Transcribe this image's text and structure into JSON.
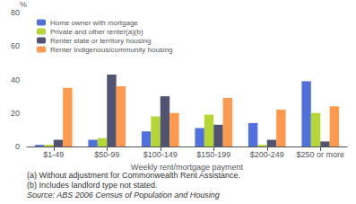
{
  "chart_data": {
    "type": "bar",
    "categories": [
      "$1-49",
      "$50-99",
      "$100-149",
      "$150-199",
      "$200-249",
      "$250 or more"
    ],
    "series": [
      {
        "name": "Home owner with mortgage",
        "values": [
          1,
          4,
          9,
          11,
          14,
          39
        ]
      },
      {
        "name": "Private and other renter(a)(b)",
        "values": [
          1,
          5,
          18,
          19,
          1,
          20
        ]
      },
      {
        "name": "Renter state or territory housing",
        "values": [
          4,
          43,
          30,
          13,
          4,
          3
        ]
      },
      {
        "name": "Renter Indigenous/community housing",
        "values": [
          35,
          36,
          20,
          29,
          22,
          24
        ]
      }
    ],
    "ylabel": "%",
    "xlabel": "Weekly rent/mortgage payment",
    "ylim": [
      0,
      80
    ],
    "yticks": [
      0,
      20,
      40,
      60,
      80
    ],
    "grid": false,
    "legend": "upper left",
    "footnotes": [
      "(a) Without adjustment for Commonwealth Rent Assistance.",
      "(b) Includes landlord type not stated."
    ],
    "source": "Source: ABS 2006 Census of Population and Housing"
  }
}
